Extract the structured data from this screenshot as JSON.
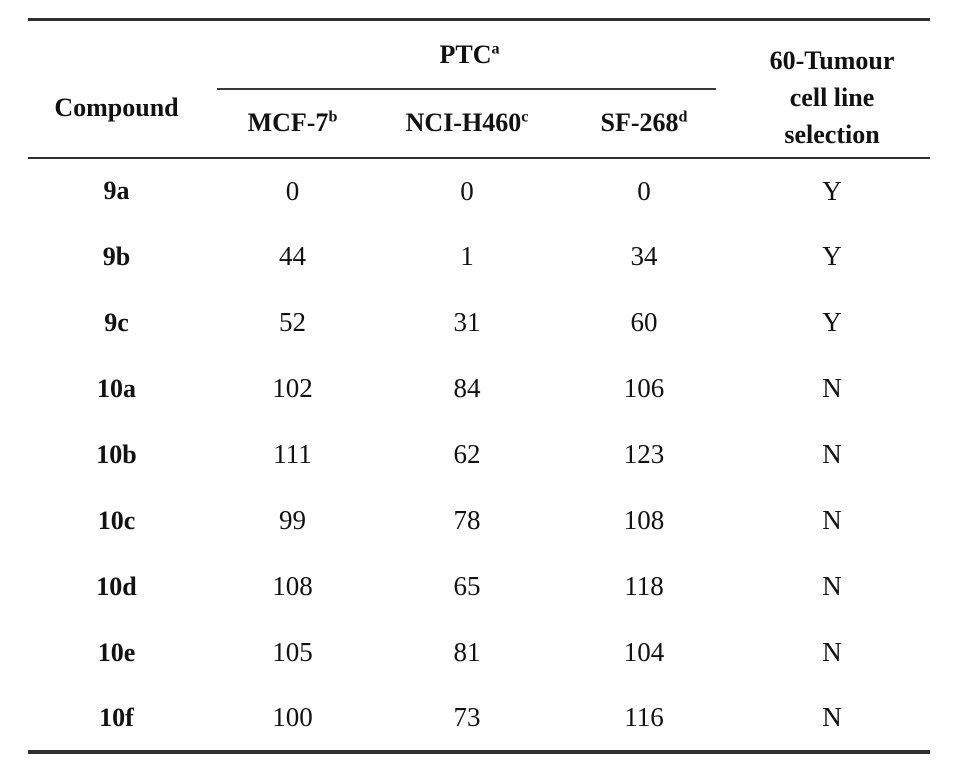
{
  "colors": {
    "background": "#ffffff",
    "text": "#111111",
    "rule": "#2f2f2f"
  },
  "table": {
    "compound_header": "Compound",
    "ptc_header": {
      "label": "PTC",
      "sup": "a"
    },
    "tumour_header": "60-Tumour\ncell line\nselection",
    "columns": [
      {
        "label": "MCF-7",
        "sup": "b"
      },
      {
        "label": "NCI-H460",
        "sup": "c"
      },
      {
        "label": "SF-268",
        "sup": "d"
      }
    ],
    "rows": [
      {
        "compound": "9a",
        "values": [
          "0",
          "0",
          "0"
        ],
        "selection": "Y"
      },
      {
        "compound": "9b",
        "values": [
          "44",
          "1",
          "34"
        ],
        "selection": "Y"
      },
      {
        "compound": "9c",
        "values": [
          "52",
          "31",
          "60"
        ],
        "selection": "Y"
      },
      {
        "compound": "10a",
        "values": [
          "102",
          "84",
          "106"
        ],
        "selection": "N"
      },
      {
        "compound": "10b",
        "values": [
          "111",
          "62",
          "123"
        ],
        "selection": "N"
      },
      {
        "compound": "10c",
        "values": [
          "99",
          "78",
          "108"
        ],
        "selection": "N"
      },
      {
        "compound": "10d",
        "values": [
          "108",
          "65",
          "118"
        ],
        "selection": "N"
      },
      {
        "compound": "10e",
        "values": [
          "105",
          "81",
          "104"
        ],
        "selection": "N"
      },
      {
        "compound": "10f",
        "values": [
          "100",
          "73",
          "116"
        ],
        "selection": "N"
      }
    ]
  }
}
